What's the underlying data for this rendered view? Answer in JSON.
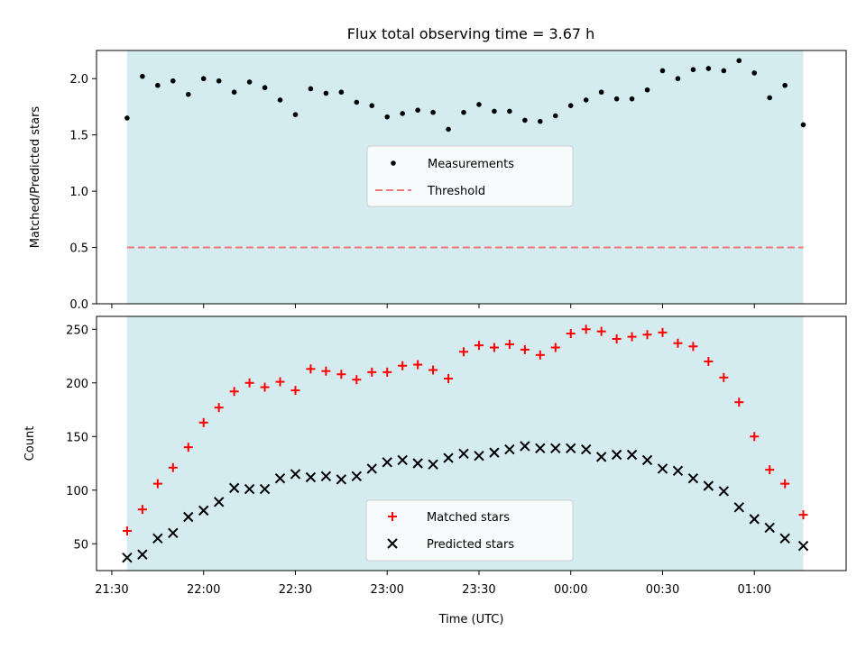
{
  "title": "Flux total observing time = 3.67 h",
  "colors": {
    "shade": "#d4ebf0",
    "measurements": "#000000",
    "threshold": "#f07878",
    "matched": "#ff0000",
    "predicted": "#000000"
  },
  "chart_data": [
    {
      "type": "scatter",
      "ylabel": "Matched/Predicted stars",
      "xlabel": "",
      "xlim": [
        "21:25",
        "01:30"
      ],
      "ylim": [
        0,
        2.25
      ],
      "yticks": [
        "0.0",
        "0.5",
        "1.0",
        "1.5",
        "2.0"
      ],
      "ytick_values": [
        0,
        0.5,
        1.0,
        1.5,
        2.0
      ],
      "shaded_region": [
        "21:35",
        "01:16"
      ],
      "legend_position": "center",
      "legend": [
        "Measurements",
        "Threshold"
      ],
      "threshold": 0.5,
      "x": [
        "21:35",
        "21:40",
        "21:45",
        "21:50",
        "21:55",
        "22:00",
        "22:05",
        "22:10",
        "22:15",
        "22:20",
        "22:25",
        "22:30",
        "22:35",
        "22:40",
        "22:45",
        "22:50",
        "22:55",
        "23:00",
        "23:05",
        "23:10",
        "23:15",
        "23:20",
        "23:25",
        "23:30",
        "23:35",
        "23:40",
        "23:45",
        "23:50",
        "23:55",
        "00:00",
        "00:05",
        "00:10",
        "00:15",
        "00:20",
        "00:25",
        "00:30",
        "00:35",
        "00:40",
        "00:45",
        "00:50",
        "00:55",
        "01:00",
        "01:05",
        "01:10",
        "01:16"
      ],
      "series": [
        {
          "name": "Measurements",
          "values": [
            1.65,
            2.02,
            1.94,
            1.98,
            1.86,
            2.0,
            1.98,
            1.88,
            1.97,
            1.92,
            1.81,
            1.68,
            1.91,
            1.87,
            1.88,
            1.79,
            1.76,
            1.66,
            1.69,
            1.72,
            1.7,
            1.55,
            1.7,
            1.77,
            1.71,
            1.71,
            1.63,
            1.62,
            1.67,
            1.76,
            1.81,
            1.88,
            1.82,
            1.82,
            1.9,
            2.07,
            2.0,
            2.08,
            2.09,
            2.07,
            2.16,
            2.05,
            1.83,
            1.94,
            1.59
          ]
        }
      ]
    },
    {
      "type": "scatter",
      "ylabel": "Count",
      "xlabel": "Time (UTC)",
      "xlim": [
        "21:25",
        "01:30"
      ],
      "ylim": [
        25,
        262
      ],
      "yticks": [
        "50",
        "100",
        "150",
        "200",
        "250"
      ],
      "ytick_values": [
        50,
        100,
        150,
        200,
        250
      ],
      "xticks": [
        "21:30",
        "22:00",
        "22:30",
        "23:00",
        "23:30",
        "00:00",
        "00:30",
        "01:00"
      ],
      "shaded_region": [
        "21:35",
        "01:16"
      ],
      "legend_position": "lower center",
      "legend": [
        "Matched stars",
        "Predicted stars"
      ],
      "x": [
        "21:35",
        "21:40",
        "21:45",
        "21:50",
        "21:55",
        "22:00",
        "22:05",
        "22:10",
        "22:15",
        "22:20",
        "22:25",
        "22:30",
        "22:35",
        "22:40",
        "22:45",
        "22:50",
        "22:55",
        "23:00",
        "23:05",
        "23:10",
        "23:15",
        "23:20",
        "23:25",
        "23:30",
        "23:35",
        "23:40",
        "23:45",
        "23:50",
        "23:55",
        "00:00",
        "00:05",
        "00:10",
        "00:15",
        "00:20",
        "00:25",
        "00:30",
        "00:35",
        "00:40",
        "00:45",
        "00:50",
        "00:55",
        "01:00",
        "01:05",
        "01:10",
        "01:16"
      ],
      "series": [
        {
          "name": "Matched stars",
          "values": [
            62,
            82,
            106,
            121,
            140,
            163,
            177,
            192,
            200,
            196,
            201,
            193,
            213,
            211,
            208,
            203,
            210,
            210,
            216,
            217,
            212,
            204,
            229,
            235,
            233,
            236,
            231,
            226,
            233,
            246,
            250,
            248,
            241,
            243,
            245,
            247,
            237,
            234,
            220,
            205,
            182,
            150,
            119,
            106,
            77
          ]
        },
        {
          "name": "Predicted stars",
          "values": [
            37,
            40,
            55,
            60,
            75,
            81,
            89,
            102,
            101,
            101,
            111,
            115,
            112,
            113,
            110,
            113,
            120,
            126,
            128,
            125,
            124,
            130,
            134,
            132,
            135,
            138,
            141,
            139,
            139,
            139,
            138,
            131,
            133,
            133,
            128,
            120,
            118,
            111,
            104,
            99,
            84,
            73,
            65,
            55,
            48
          ]
        }
      ]
    }
  ]
}
